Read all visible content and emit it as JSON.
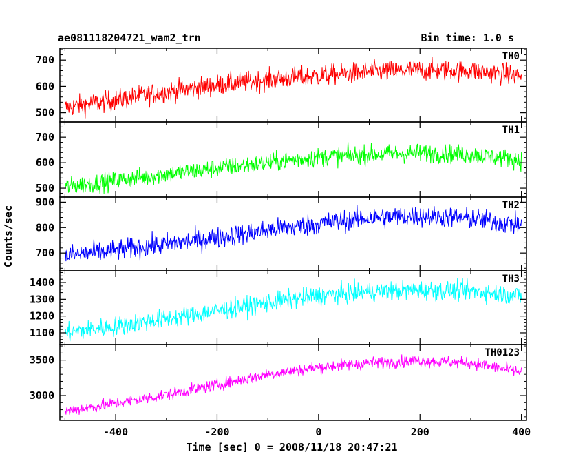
{
  "header": {
    "title": "ae081118204721_wam2_trn",
    "bin_time": "Bin time: 1.0 s"
  },
  "axes": {
    "xlabel": "Time [sec] 0 = 2008/11/18 20:47:21",
    "ylabel": "Counts/sec"
  },
  "chart_data": {
    "type": "line",
    "title": "ae081118204721_wam2_trn",
    "xlabel": "Time [sec] 0 = 2008/11/18 20:47:21",
    "ylabel": "Counts/sec",
    "xlim": [
      -510,
      410
    ],
    "xticks": [
      -400,
      -200,
      0,
      200,
      400
    ],
    "grid": false,
    "series": [
      {
        "name": "TH0",
        "color": "#ff0000",
        "ylim": [
          465,
          745
        ],
        "yticks": [
          500,
          600,
          700
        ],
        "x": [
          -500,
          -400,
          -300,
          -200,
          -100,
          0,
          100,
          200,
          300,
          400
        ],
        "values": [
          520,
          548,
          580,
          605,
          625,
          640,
          655,
          662,
          660,
          640
        ],
        "noise": 38
      },
      {
        "name": "TH1",
        "color": "#00ff00",
        "ylim": [
          465,
          760
        ],
        "yticks": [
          500,
          600,
          700
        ],
        "x": [
          -500,
          -400,
          -300,
          -200,
          -100,
          0,
          100,
          200,
          300,
          400
        ],
        "values": [
          505,
          530,
          555,
          578,
          600,
          622,
          632,
          638,
          632,
          610
        ],
        "noise": 35
      },
      {
        "name": "TH2",
        "color": "#0000ff",
        "ylim": [
          630,
          920
        ],
        "yticks": [
          700,
          800,
          900
        ],
        "x": [
          -500,
          -400,
          -300,
          -200,
          -100,
          0,
          100,
          200,
          300,
          400
        ],
        "values": [
          690,
          710,
          735,
          760,
          790,
          815,
          838,
          845,
          835,
          810
        ],
        "noise": 40
      },
      {
        "name": "TH3",
        "color": "#00ffff",
        "ylim": [
          1030,
          1470
        ],
        "yticks": [
          1100,
          1200,
          1300,
          1400
        ],
        "x": [
          -500,
          -400,
          -300,
          -200,
          -100,
          0,
          100,
          200,
          300,
          400
        ],
        "values": [
          1100,
          1140,
          1185,
          1230,
          1280,
          1320,
          1345,
          1355,
          1350,
          1320
        ],
        "noise": 55
      },
      {
        "name": "TH0123",
        "color": "#ff00ff",
        "ylim": [
          2650,
          3720
        ],
        "yticks": [
          3000,
          3500
        ],
        "x": [
          -500,
          -400,
          -300,
          -200,
          -100,
          0,
          100,
          200,
          300,
          400
        ],
        "values": [
          2780,
          2890,
          3010,
          3150,
          3300,
          3400,
          3460,
          3490,
          3460,
          3330
        ],
        "noise": 80
      }
    ]
  }
}
